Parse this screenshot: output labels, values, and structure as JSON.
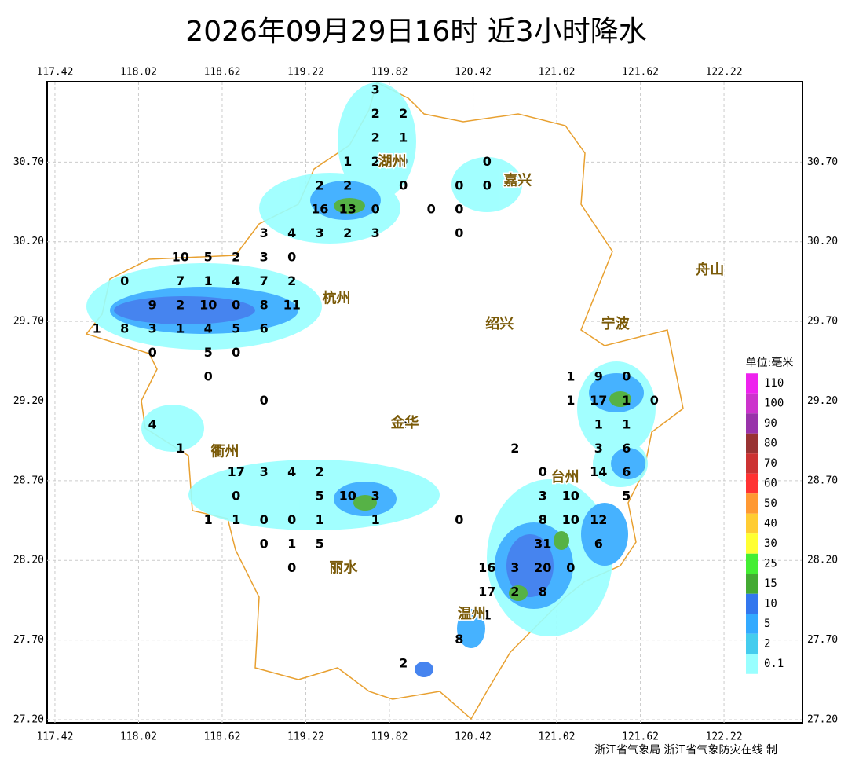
{
  "map": {
    "type": "map",
    "title": "2026年09月29日16时  近3小时降水",
    "credit": "浙江省气象局 浙江省气象防灾在线 制",
    "xlim": [
      117.364,
      122.783
    ],
    "ylim": [
      27.18,
      31.205
    ],
    "xticks": [
      117.42,
      118.02,
      118.62,
      119.22,
      119.82,
      120.42,
      121.02,
      121.62,
      122.22
    ],
    "yticks": [
      {
        "value": 30.7,
        "label": "30.70"
      },
      {
        "value": 30.2,
        "label": "30.20"
      },
      {
        "value": 29.7,
        "label": "29.70"
      },
      {
        "value": 29.2,
        "label": "29.20"
      },
      {
        "value": 28.7,
        "label": "28.70"
      },
      {
        "value": 28.2,
        "label": "28.20"
      },
      {
        "value": 27.7,
        "label": "27.70"
      },
      {
        "value": 27.2,
        "label": "27.20"
      }
    ],
    "grid": true,
    "cities": [
      {
        "name": "湖州",
        "lon": 119.84,
        "lat": 30.7
      },
      {
        "name": "嘉兴",
        "lon": 120.74,
        "lat": 30.58
      },
      {
        "name": "杭州",
        "lon": 119.44,
        "lat": 29.84
      },
      {
        "name": "舟山",
        "lon": 122.12,
        "lat": 30.02
      },
      {
        "name": "绍兴",
        "lon": 120.61,
        "lat": 29.68
      },
      {
        "name": "宁波",
        "lon": 121.44,
        "lat": 29.68
      },
      {
        "name": "金华",
        "lon": 119.93,
        "lat": 29.06
      },
      {
        "name": "衢州",
        "lon": 118.64,
        "lat": 28.88
      },
      {
        "name": "台州",
        "lon": 121.08,
        "lat": 28.72
      },
      {
        "name": "丽水",
        "lon": 119.49,
        "lat": 28.15
      },
      {
        "name": "温州",
        "lon": 120.41,
        "lat": 27.86
      }
    ],
    "stations": [
      [
        119.72,
        31.15,
        3
      ],
      [
        119.72,
        31.0,
        2
      ],
      [
        119.92,
        31.0,
        2
      ],
      [
        119.72,
        30.85,
        2
      ],
      [
        119.92,
        30.85,
        1
      ],
      [
        119.52,
        30.7,
        1
      ],
      [
        119.72,
        30.7,
        2
      ],
      [
        119.92,
        30.7,
        0
      ],
      [
        120.52,
        30.7,
        0
      ],
      [
        119.92,
        30.55,
        0
      ],
      [
        120.32,
        30.55,
        0
      ],
      [
        120.52,
        30.55,
        0
      ],
      [
        119.32,
        30.55,
        2
      ],
      [
        119.52,
        30.55,
        2
      ],
      [
        119.32,
        30.4,
        16
      ],
      [
        119.52,
        30.4,
        13
      ],
      [
        119.72,
        30.4,
        0
      ],
      [
        120.12,
        30.4,
        0
      ],
      [
        120.32,
        30.4,
        0
      ],
      [
        120.32,
        30.25,
        0
      ],
      [
        118.92,
        30.25,
        3
      ],
      [
        119.12,
        30.25,
        4
      ],
      [
        119.32,
        30.25,
        3
      ],
      [
        119.52,
        30.25,
        2
      ],
      [
        119.72,
        30.25,
        3
      ],
      [
        118.32,
        30.1,
        10
      ],
      [
        118.52,
        30.1,
        5
      ],
      [
        118.72,
        30.1,
        2
      ],
      [
        118.92,
        30.1,
        3
      ],
      [
        119.12,
        30.1,
        0
      ],
      [
        117.92,
        29.95,
        0
      ],
      [
        118.32,
        29.95,
        7
      ],
      [
        118.52,
        29.95,
        1
      ],
      [
        118.72,
        29.95,
        4
      ],
      [
        118.92,
        29.95,
        7
      ],
      [
        119.12,
        29.95,
        2
      ],
      [
        118.12,
        29.8,
        9
      ],
      [
        118.32,
        29.8,
        2
      ],
      [
        118.52,
        29.8,
        10
      ],
      [
        118.72,
        29.8,
        0
      ],
      [
        118.92,
        29.8,
        8
      ],
      [
        119.12,
        29.8,
        11
      ],
      [
        117.72,
        29.65,
        1
      ],
      [
        117.92,
        29.65,
        8
      ],
      [
        118.12,
        29.65,
        3
      ],
      [
        118.32,
        29.65,
        1
      ],
      [
        118.52,
        29.65,
        4
      ],
      [
        118.72,
        29.65,
        5
      ],
      [
        118.92,
        29.65,
        6
      ],
      [
        118.12,
        29.5,
        0
      ],
      [
        118.52,
        29.5,
        5
      ],
      [
        118.72,
        29.5,
        0
      ],
      [
        118.52,
        29.35,
        0
      ],
      [
        118.92,
        29.2,
        0
      ],
      [
        118.12,
        29.05,
        4
      ],
      [
        118.32,
        28.9,
        1
      ],
      [
        118.72,
        28.75,
        17
      ],
      [
        118.92,
        28.75,
        3
      ],
      [
        119.12,
        28.75,
        4
      ],
      [
        119.32,
        28.75,
        2
      ],
      [
        118.72,
        28.6,
        0
      ],
      [
        119.32,
        28.6,
        5
      ],
      [
        119.52,
        28.6,
        10
      ],
      [
        119.72,
        28.6,
        3
      ],
      [
        118.52,
        28.45,
        1
      ],
      [
        118.72,
        28.45,
        1
      ],
      [
        118.92,
        28.45,
        0
      ],
      [
        119.12,
        28.45,
        0
      ],
      [
        119.32,
        28.45,
        1
      ],
      [
        119.72,
        28.45,
        1
      ],
      [
        118.92,
        28.3,
        0
      ],
      [
        119.12,
        28.3,
        1
      ],
      [
        119.32,
        28.3,
        5
      ],
      [
        119.12,
        28.15,
        0
      ],
      [
        119.92,
        29.05,
        0
      ],
      [
        120.32,
        28.45,
        0
      ],
      [
        120.72,
        28.9,
        2
      ],
      [
        120.92,
        28.75,
        0
      ],
      [
        120.92,
        28.6,
        3
      ],
      [
        121.12,
        28.6,
        10
      ],
      [
        120.92,
        28.45,
        8
      ],
      [
        121.12,
        28.45,
        10
      ],
      [
        121.32,
        28.45,
        12
      ],
      [
        120.92,
        28.3,
        31
      ],
      [
        121.32,
        28.3,
        6
      ],
      [
        120.52,
        28.15,
        16
      ],
      [
        120.72,
        28.15,
        3
      ],
      [
        120.92,
        28.15,
        20
      ],
      [
        121.12,
        28.15,
        0
      ],
      [
        120.52,
        28.0,
        17
      ],
      [
        120.72,
        28.0,
        2
      ],
      [
        120.92,
        28.0,
        8
      ],
      [
        120.52,
        27.85,
        1
      ],
      [
        120.32,
        27.7,
        8
      ],
      [
        119.92,
        27.55,
        2
      ],
      [
        121.12,
        29.35,
        1
      ],
      [
        121.32,
        29.35,
        9
      ],
      [
        121.52,
        29.35,
        0
      ],
      [
        121.12,
        29.2,
        1
      ],
      [
        121.32,
        29.2,
        17
      ],
      [
        121.52,
        29.2,
        1
      ],
      [
        121.72,
        29.2,
        0
      ],
      [
        121.32,
        29.05,
        1
      ],
      [
        121.52,
        29.05,
        1
      ],
      [
        121.32,
        28.9,
        3
      ],
      [
        121.52,
        28.9,
        6
      ],
      [
        121.32,
        28.75,
        14
      ],
      [
        121.52,
        28.75,
        6
      ],
      [
        121.52,
        28.6,
        5
      ]
    ],
    "legend": {
      "title": "单位:毫米",
      "levels": [
        {
          "value": 110,
          "color": "#ee22ee"
        },
        {
          "value": 100,
          "color": "#cc33cc"
        },
        {
          "value": 90,
          "color": "#9933aa"
        },
        {
          "value": 80,
          "color": "#993333"
        },
        {
          "value": 70,
          "color": "#cc3333"
        },
        {
          "value": 60,
          "color": "#ff3333"
        },
        {
          "value": 50,
          "color": "#ff9933"
        },
        {
          "value": 40,
          "color": "#ffcc33"
        },
        {
          "value": 30,
          "color": "#ffff33"
        },
        {
          "value": 25,
          "color": "#44ee33"
        },
        {
          "value": 15,
          "color": "#44aa33"
        },
        {
          "value": 10,
          "color": "#3377ee"
        },
        {
          "value": 5,
          "color": "#33aaff"
        },
        {
          "value": 2,
          "color": "#44ccee"
        },
        {
          "value": 0.1,
          "color": "#99ffff"
        }
      ]
    }
  }
}
